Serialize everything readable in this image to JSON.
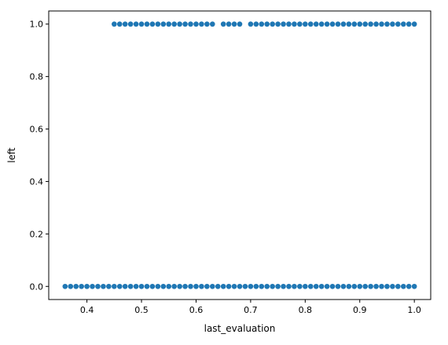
{
  "chart_data": {
    "type": "scatter",
    "title": "",
    "xlabel": "last_evaluation",
    "ylabel": "left",
    "xlim": [
      0.33,
      1.03
    ],
    "ylim": [
      -0.05,
      1.05
    ],
    "xticks": [
      0.4,
      0.5,
      0.6,
      0.7,
      0.8,
      0.9,
      1.0
    ],
    "xtick_labels": [
      "0.4",
      "0.5",
      "0.6",
      "0.7",
      "0.8",
      "0.9",
      "1.0"
    ],
    "yticks": [
      0.0,
      0.2,
      0.4,
      0.6,
      0.8,
      1.0
    ],
    "ytick_labels": [
      "0.0",
      "0.2",
      "0.4",
      "0.6",
      "0.8",
      "1.0"
    ],
    "grid": false,
    "marker_color": "#1f77b4",
    "series": [
      {
        "y": 0,
        "x_ranges": [
          [
            0.36,
            1.0
          ]
        ]
      },
      {
        "y": 1,
        "x_ranges": [
          [
            0.45,
            0.63
          ],
          [
            0.65,
            0.68
          ],
          [
            0.7,
            1.0
          ]
        ]
      }
    ]
  }
}
